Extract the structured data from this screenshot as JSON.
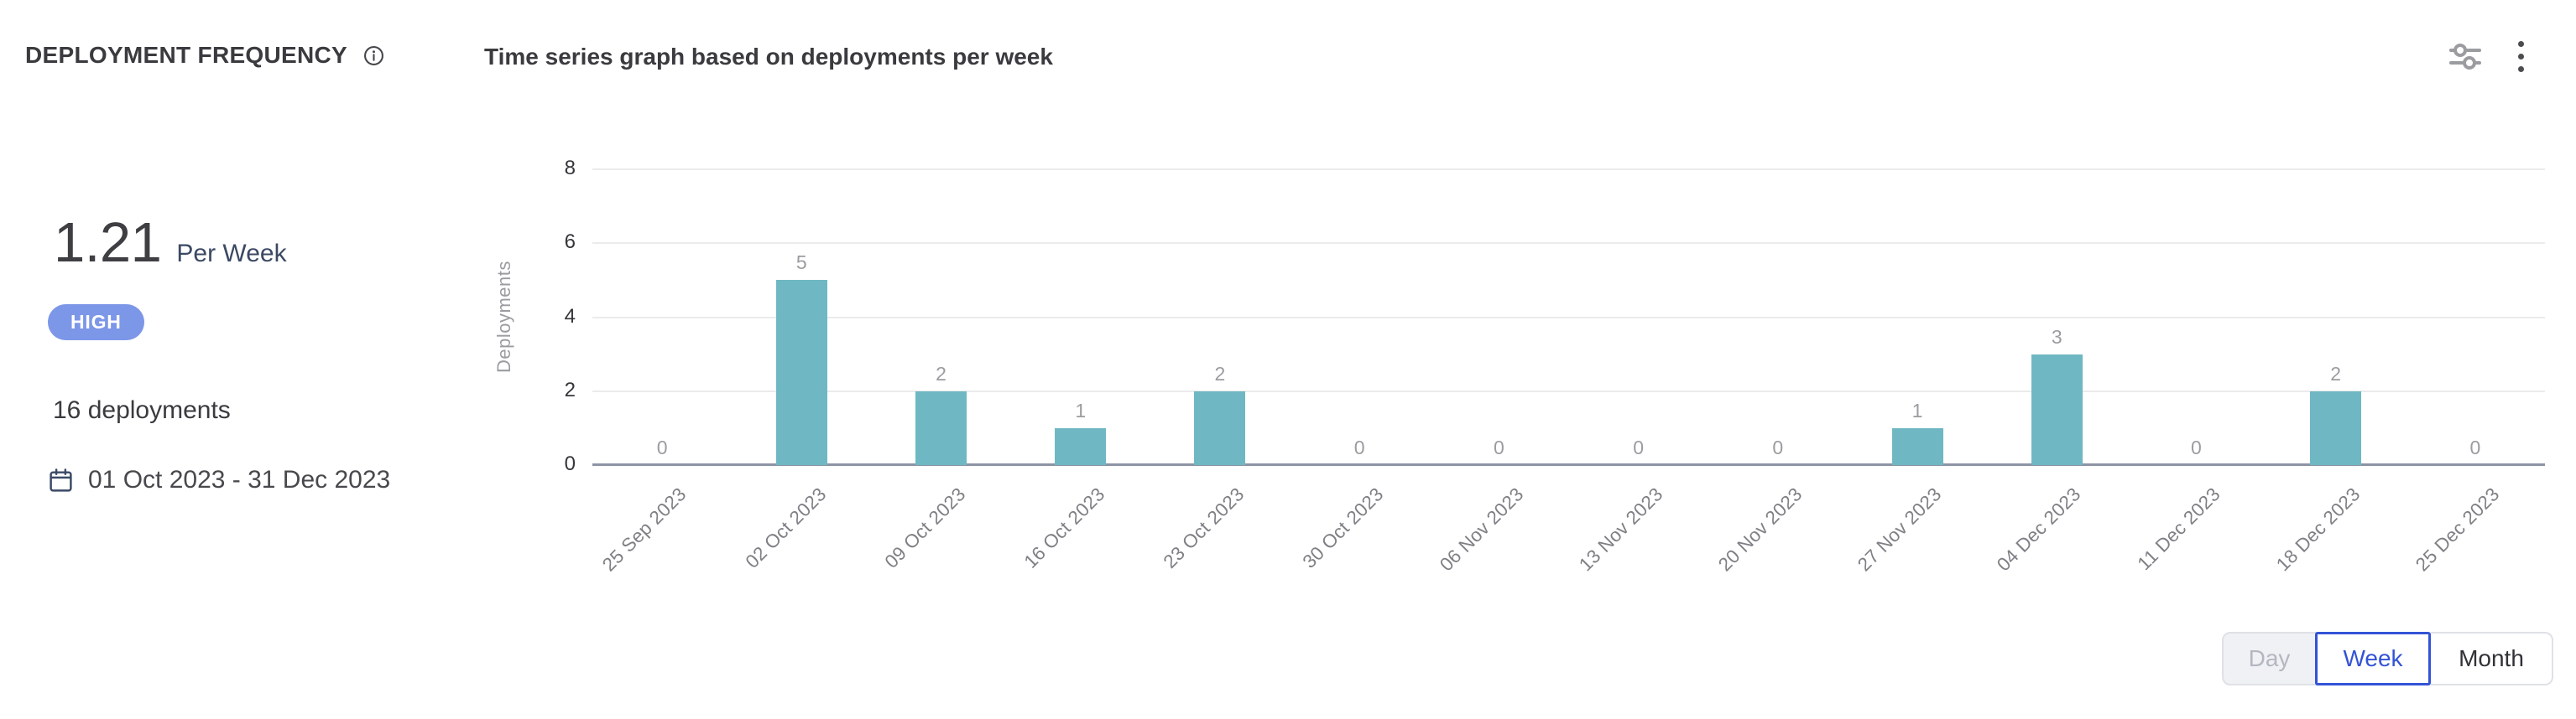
{
  "panel": {
    "title": "DEPLOYMENT FREQUENCY",
    "chart_title": "Time series graph based on deployments per week"
  },
  "summary": {
    "value": "1.21",
    "unit": "Per Week",
    "badge": "HIGH",
    "deployment_count": "16 deployments",
    "date_range": "01 Oct 2023 - 31 Dec 2023"
  },
  "icons": {
    "info": "info-icon",
    "settings": "sliders-icon",
    "menu": "kebab-menu-icon",
    "calendar": "calendar-icon"
  },
  "chart_data": {
    "type": "bar",
    "title": "Time series graph based on deployments per week",
    "categories": [
      "25 Sep 2023",
      "02 Oct 2023",
      "09 Oct 2023",
      "16 Oct 2023",
      "23 Oct 2023",
      "30 Oct 2023",
      "06 Nov 2023",
      "13 Nov 2023",
      "20 Nov 2023",
      "27 Nov 2023",
      "04 Dec 2023",
      "11 Dec 2023",
      "18 Dec 2023",
      "25 Dec 2023"
    ],
    "values": [
      0,
      5,
      2,
      1,
      2,
      0,
      0,
      0,
      0,
      1,
      3,
      0,
      2,
      0
    ],
    "xlabel": "",
    "ylabel": "Deployments",
    "ylim": [
      0,
      8
    ],
    "yticks": [
      0,
      2,
      4,
      6,
      8
    ],
    "grid": true,
    "legend": "none",
    "bar_color": "#6FB8C3",
    "value_labels": true
  },
  "granularity": {
    "options": [
      {
        "label": "Day",
        "state": "disabled"
      },
      {
        "label": "Week",
        "state": "selected"
      },
      {
        "label": "Month",
        "state": "default"
      }
    ]
  },
  "colors": {
    "accent_blue": "#3353D6",
    "badge_bg": "#7C96E8",
    "bar": "#6FB8C3",
    "navy": "#3B4963",
    "grid": "#EBEBEB",
    "axis_base": "#8C94A4"
  }
}
